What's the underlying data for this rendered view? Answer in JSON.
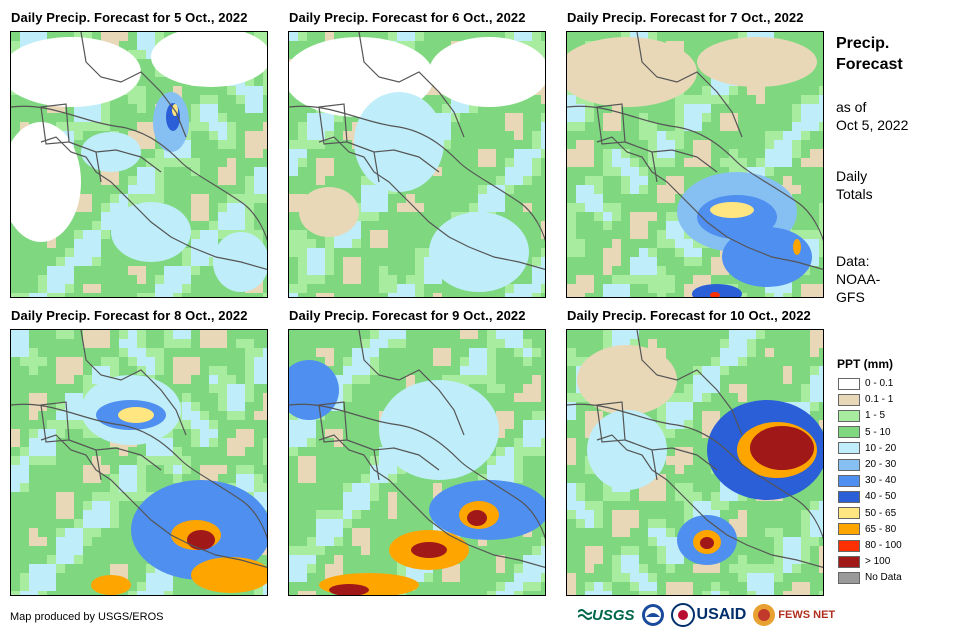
{
  "panels": [
    {
      "title": "Daily Precip. Forecast for 5 Oct., 2022"
    },
    {
      "title": "Daily Precip. Forecast for 6 Oct., 2022"
    },
    {
      "title": "Daily Precip. Forecast for 7 Oct., 2022"
    },
    {
      "title": "Daily Precip. Forecast for 8 Oct., 2022"
    },
    {
      "title": "Daily Precip. Forecast for 9 Oct., 2022"
    },
    {
      "title": "Daily Precip. Forecast for 10 Oct., 2022"
    }
  ],
  "sidebar": {
    "title_line1": "Precip.",
    "title_line2": "Forecast",
    "asof_line1": "as of",
    "asof_line2": "Oct 5, 2022",
    "totals_line1": "Daily",
    "totals_line2": "Totals",
    "data_line1": "Data:",
    "data_line2": "NOAA-",
    "data_line3": "GFS"
  },
  "legend": {
    "title": "PPT (mm)",
    "items": [
      {
        "label": "0 - 0.1",
        "color": "#ffffff"
      },
      {
        "label": "0.1 - 1",
        "color": "#e8d8b8"
      },
      {
        "label": "1 - 5",
        "color": "#a8eca0"
      },
      {
        "label": "5 - 10",
        "color": "#7fd87f"
      },
      {
        "label": "10 - 20",
        "color": "#bfeefa"
      },
      {
        "label": "20 - 30",
        "color": "#86bff2"
      },
      {
        "label": "30 - 40",
        "color": "#4f8ff0"
      },
      {
        "label": "40 - 50",
        "color": "#2a5fd8"
      },
      {
        "label": "50 - 65",
        "color": "#ffe680"
      },
      {
        "label": "65 - 80",
        "color": "#ffa500"
      },
      {
        "label": "80 - 100",
        "color": "#ff3000"
      },
      {
        "label": "> 100",
        "color": "#a01818"
      },
      {
        "label": "No Data",
        "color": "#9a9a9a"
      }
    ]
  },
  "credit": "Map produced by USGS/EROS",
  "logos": {
    "usgs": "USGS",
    "usaid": "USAID",
    "fewsnet": "FEWS NET"
  }
}
